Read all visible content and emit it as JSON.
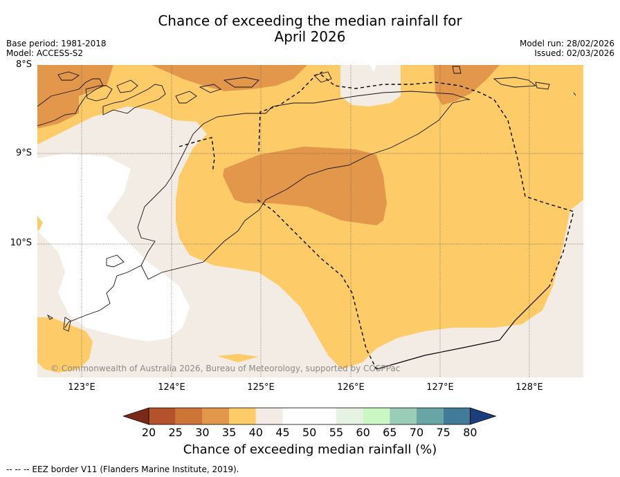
{
  "title": {
    "line1": "Chance of exceeding the median rainfall for",
    "line2": "April 2026"
  },
  "meta": {
    "base_period": "Base period: 1981-2018",
    "model": "Model: ACCESS-S2",
    "model_run": "Model run: 28/02/2026",
    "issued": "Issued: 02/03/2026"
  },
  "map": {
    "lat_labels": [
      "8°S",
      "9°S",
      "10°S"
    ],
    "lon_labels": [
      "123°E",
      "124°E",
      "125°E",
      "126°E",
      "127°E",
      "128°E"
    ],
    "copyright": "© Commonwealth of Australia 2026, Bureau of Meteorology, supported by COSPPac"
  },
  "colorbar": {
    "ticks": [
      "20",
      "25",
      "30",
      "35",
      "40",
      "45",
      "50",
      "55",
      "60",
      "65",
      "70",
      "75",
      "80"
    ],
    "colors": [
      "#7a2a16",
      "#b4522b",
      "#cd7536",
      "#e2974a",
      "#fdcb68",
      "#f2ece4",
      "#ffffff",
      "#ffffff",
      "#e6f2e2",
      "#cbf7c5",
      "#99cdb7",
      "#6aa5a5",
      "#417b99",
      "#1a3f7a"
    ],
    "title": "Chance of exceeding median rainfall (%)"
  },
  "legend": {
    "footnote": "--  --  -- EEZ border V11 (Flanders Marine Institute, 2019)."
  },
  "palette": {
    "dark_orange": "#e2974a",
    "light_orange": "#fdcb68",
    "neutral": "#f2ece4",
    "white": "#ffffff"
  }
}
